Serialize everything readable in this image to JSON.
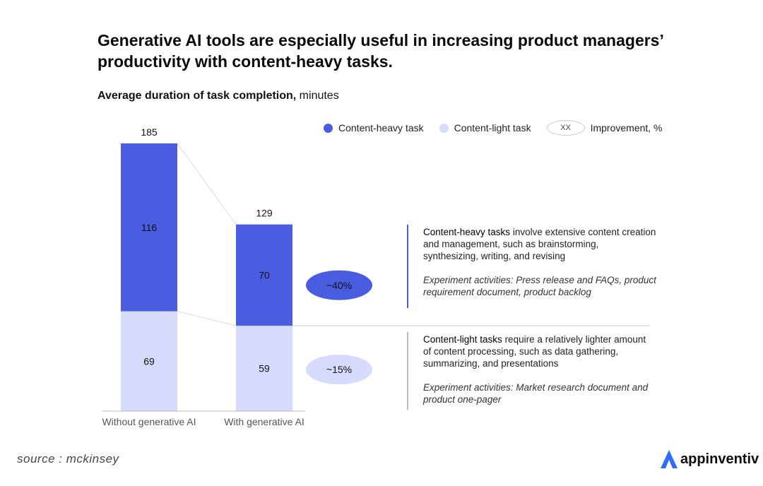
{
  "title": "Generative AI tools are especially useful in increasing product managers’ productivity with content-heavy tasks.",
  "subtitle_bold": "Average duration of task completion,",
  "subtitle_unit": " minutes",
  "legend": {
    "heavy": "Content-heavy task",
    "light": "Content-light task",
    "xx": "XX",
    "improvement": "Improvement, %"
  },
  "colors": {
    "heavy": "#4a5ce0",
    "light": "#d6dbfb",
    "divider": "#4a5ce0",
    "divider_light": "#bbbbbb"
  },
  "chart_data": {
    "type": "bar",
    "stacked": true,
    "categories": [
      "Without generative AI",
      "With generative AI"
    ],
    "series": [
      {
        "name": "Content-light task",
        "values": [
          69,
          59
        ]
      },
      {
        "name": "Content-heavy task",
        "values": [
          116,
          70
        ]
      }
    ],
    "totals": [
      185,
      129
    ],
    "improvements": [
      {
        "series": "Content-heavy task",
        "label": "~40%"
      },
      {
        "series": "Content-light task",
        "label": "~15%"
      }
    ],
    "ylim": [
      0,
      185
    ],
    "title": "Average duration of task completion, minutes"
  },
  "descriptions": {
    "heavy": {
      "bold": "Content-heavy tasks",
      "text": " involve extensive content creation and management, such as brainstorming, synthesizing, writing, and revising",
      "activities": "Experiment activities: Press release and FAQs, product requirement document, product backlog"
    },
    "light": {
      "bold": "Content-light tasks",
      "text": " require a relatively lighter amount of content processing, such as data gathering, summarizing, and presentations",
      "activities": "Experiment activities: Market research document and product one-pager"
    }
  },
  "source": "source : mckinsey",
  "brand": "appinventiv"
}
